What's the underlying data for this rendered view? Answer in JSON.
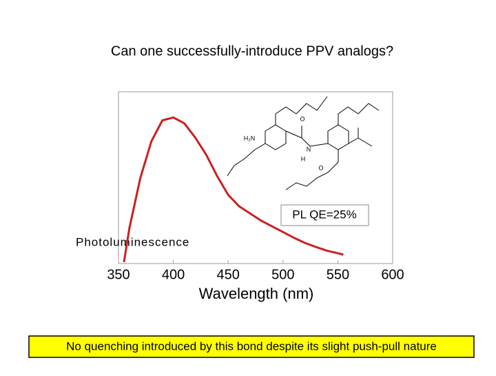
{
  "chart_data": {
    "type": "line",
    "title": "Can one successfully-introduce PPV analogs?",
    "x_label": "Wavelength (nm)",
    "y_label": "Photoluminescence",
    "x": [
      355,
      360,
      370,
      380,
      390,
      400,
      410,
      420,
      430,
      440,
      450,
      460,
      470,
      480,
      490,
      500,
      510,
      520,
      530,
      540,
      550,
      555
    ],
    "series": [
      {
        "name": "PL",
        "color": "#cc1f1f",
        "values": [
          0.05,
          1.25,
          3.0,
          4.27,
          5.0,
          5.1,
          4.9,
          4.4,
          3.8,
          3.05,
          2.4,
          2.0,
          1.75,
          1.5,
          1.3,
          1.1,
          0.9,
          0.72,
          0.58,
          0.45,
          0.36,
          0.31
        ]
      }
    ],
    "xlim": [
      350,
      600
    ],
    "xticks": [
      350,
      400,
      450,
      500,
      550,
      600
    ],
    "ylim": [
      0,
      6
    ],
    "annotation": "PL QE=25%",
    "molecule_labels": [
      "H₂N",
      "O",
      "N",
      "H",
      "O"
    ],
    "footer": "No quenching introduced by this bond despite its slight push-pull nature"
  }
}
